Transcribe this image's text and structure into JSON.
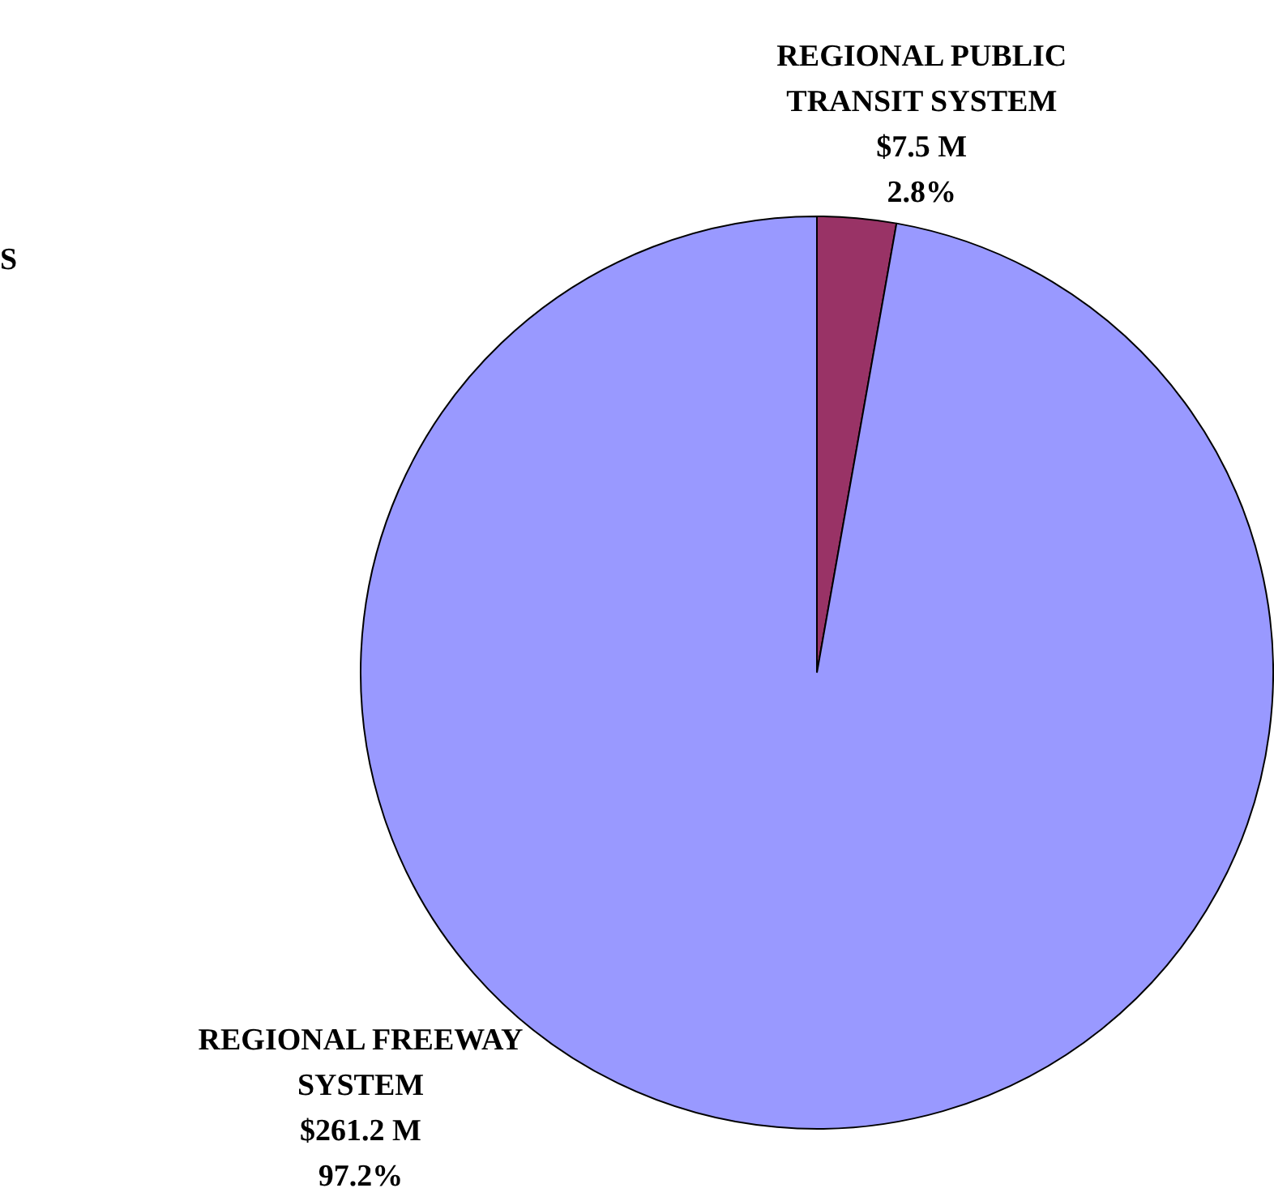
{
  "chart_data": {
    "type": "pie",
    "categories": [
      "REGIONAL PUBLIC TRANSIT SYSTEM",
      "REGIONAL FREEWAY SYSTEM"
    ],
    "values": [
      7.5,
      261.2
    ],
    "value_labels": [
      "$7.5 M\n2.8%",
      "$261.2 M\n97.2%"
    ],
    "colors": [
      "#993366",
      "#9999ff"
    ],
    "annotations": [
      "S"
    ],
    "legend": false
  }
}
